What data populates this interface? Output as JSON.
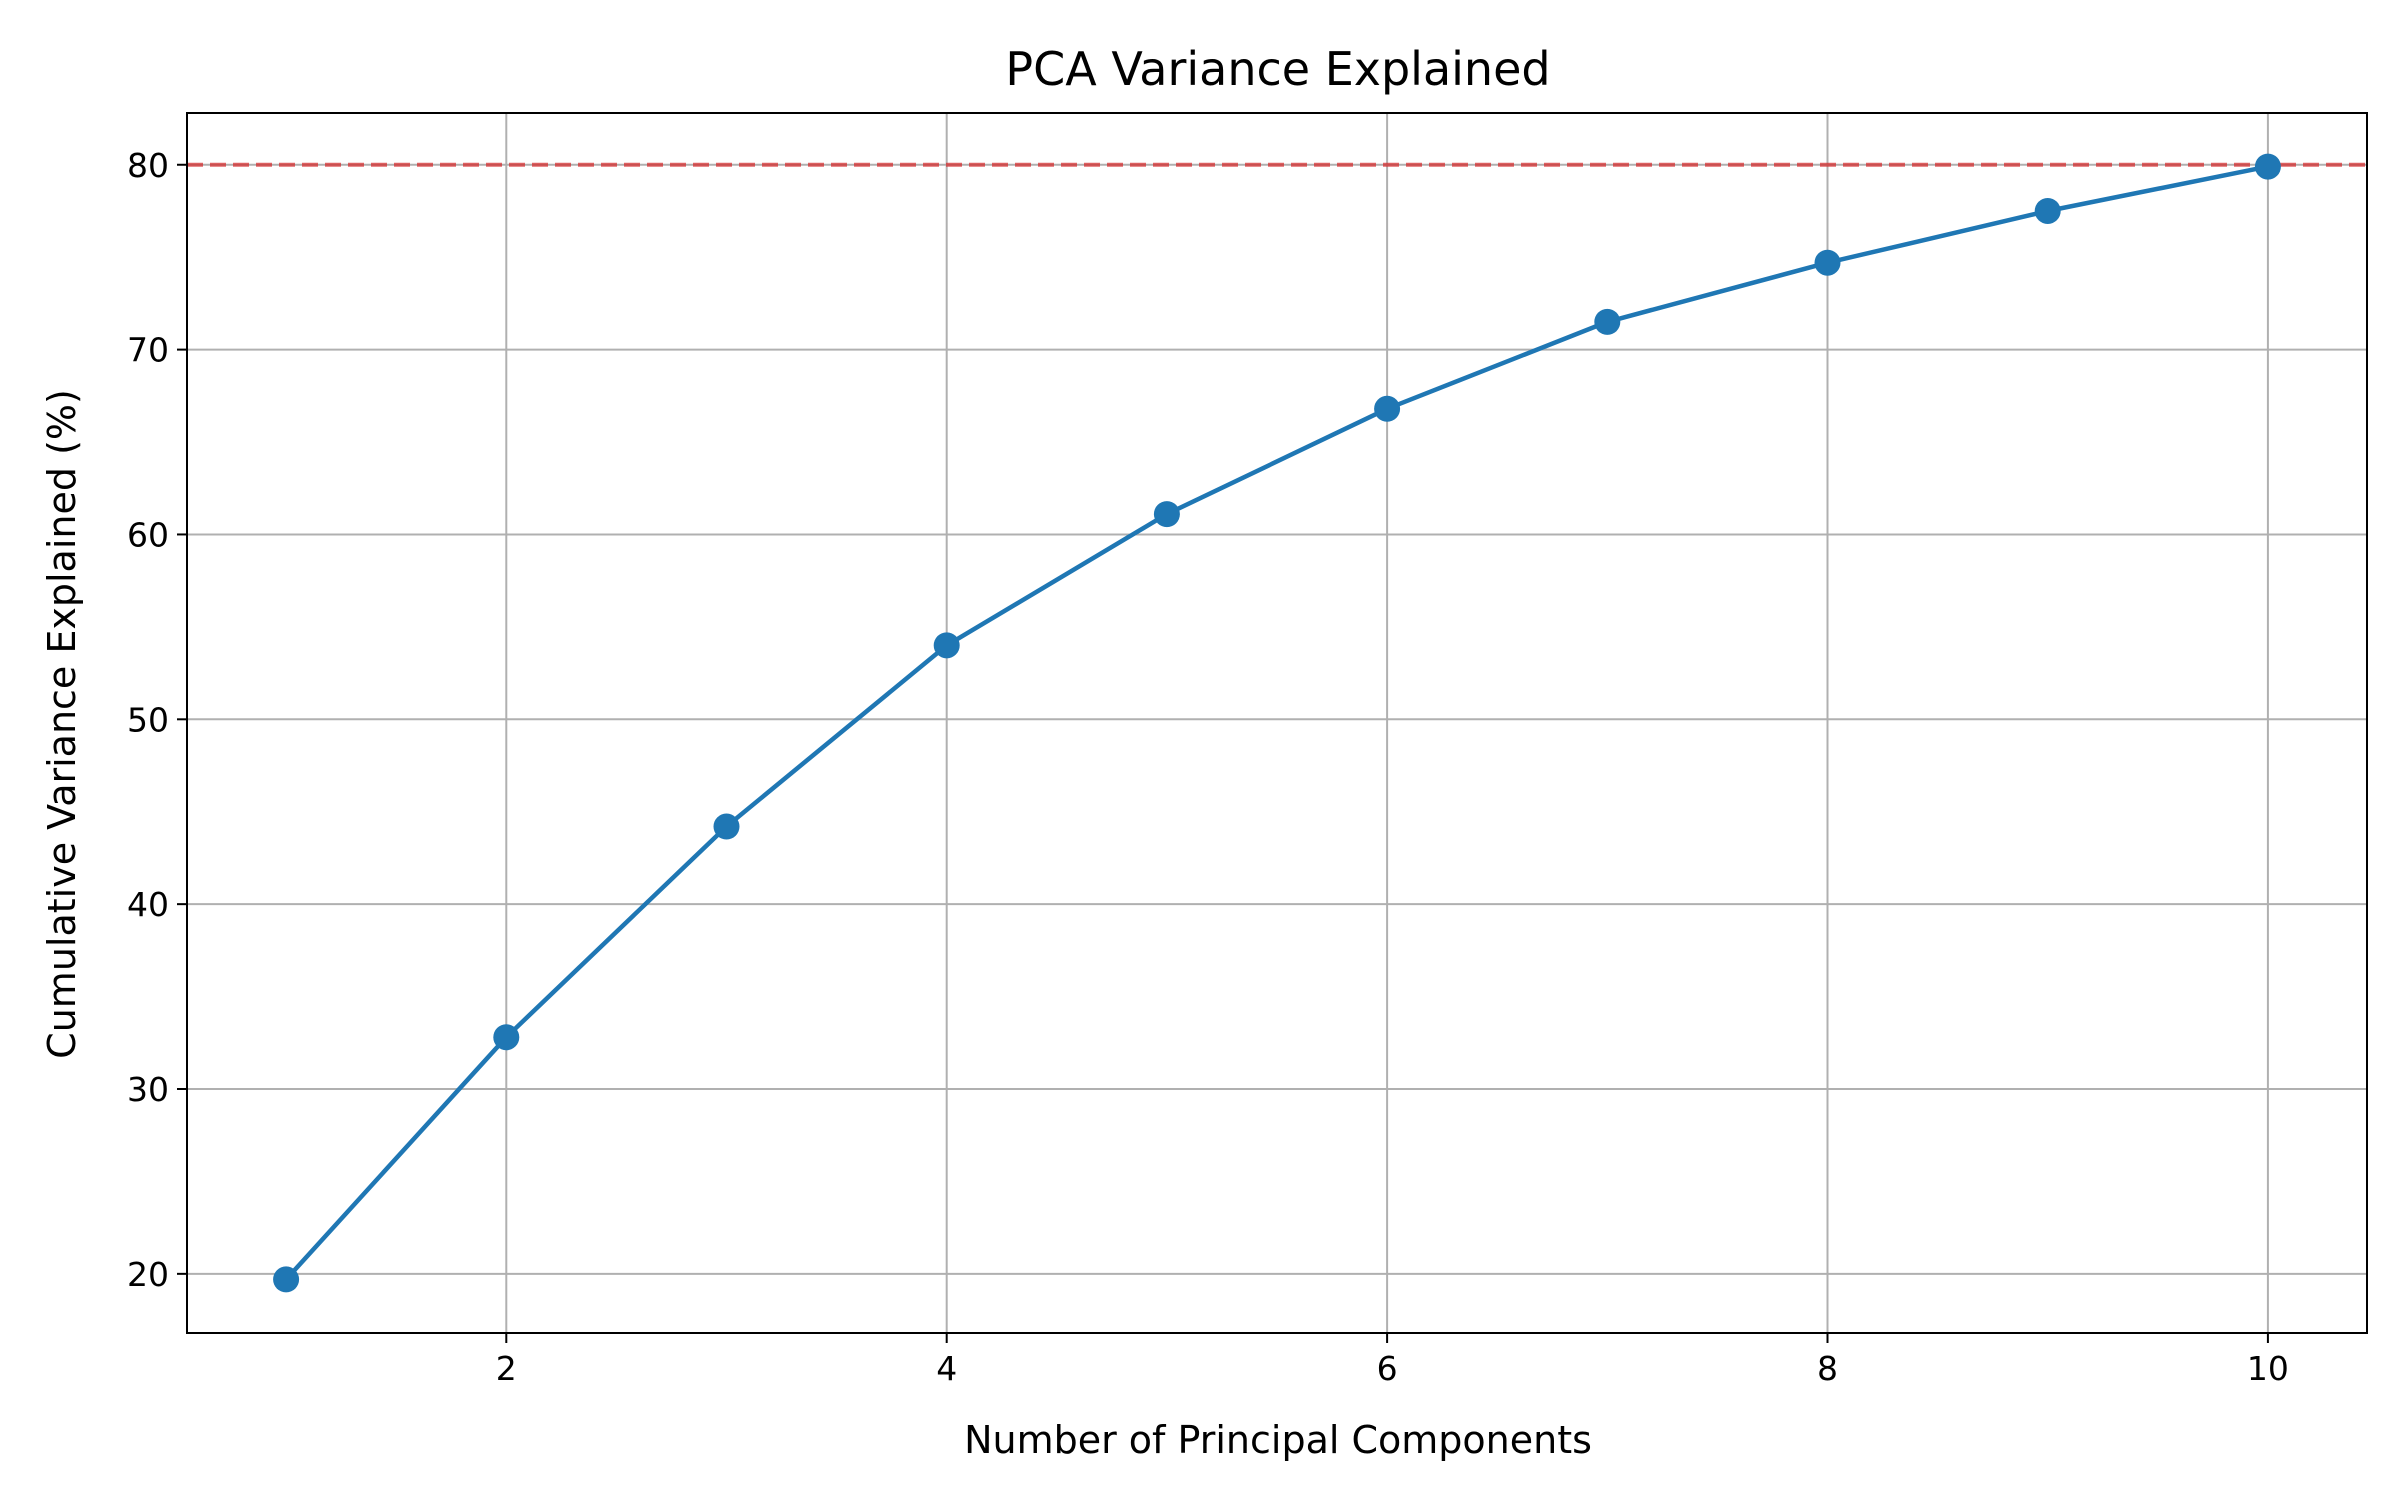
{
  "chart_data": {
    "type": "line",
    "title": "PCA Variance Explained",
    "xlabel": "Number of Principal Components",
    "ylabel": "Cumulative Variance Explained (%)",
    "x": [
      1,
      2,
      3,
      4,
      5,
      6,
      7,
      8,
      9,
      10
    ],
    "series": [
      {
        "values": [
          19.7,
          32.8,
          44.2,
          54.0,
          61.1,
          66.8,
          71.5,
          74.7,
          77.5,
          79.9
        ],
        "color": "#1f77b4",
        "marker": "circle"
      }
    ],
    "reference_line": {
      "orientation": "horizontal",
      "y": 80,
      "style": "dashed",
      "color": "#d62728"
    },
    "xlim": [
      0.55,
      10.45
    ],
    "ylim": [
      16.8,
      82.8
    ],
    "xticks": [
      2,
      4,
      6,
      8,
      10
    ],
    "yticks": [
      20,
      30,
      40,
      50,
      60,
      70,
      80
    ],
    "grid": true,
    "legend": false
  }
}
